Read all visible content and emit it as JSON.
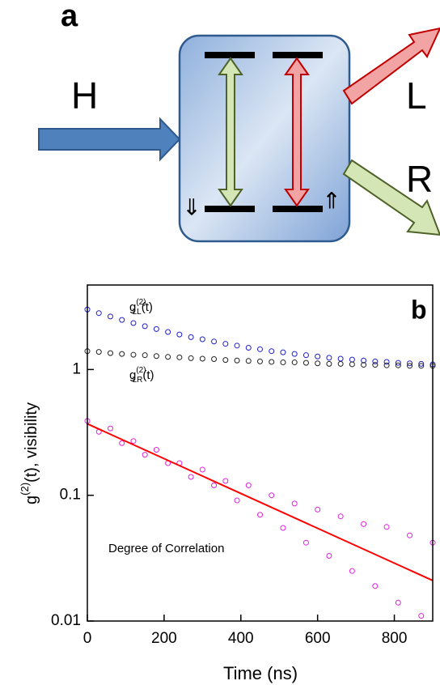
{
  "diagram": {
    "panel_label": "a",
    "input": "H",
    "outputs": [
      "L",
      "R"
    ],
    "spin_down": "⇓",
    "spin_up": "⇑"
  },
  "chart_data": {
    "type": "scatter",
    "panel_label": "b",
    "xlabel": "Time (ns)",
    "ylabel": {
      "base": "g",
      "sup": "(2)",
      "rest": "(t), visibility"
    },
    "log_y": true,
    "xlim": [
      0,
      900
    ],
    "xticks": [
      0,
      200,
      400,
      600,
      800
    ],
    "ylim": [
      0.01,
      4.7
    ],
    "yticks": [
      0.01,
      0.1,
      1
    ],
    "annotations": [
      {
        "base": "g",
        "sup": "(2)",
        "sub": "LL",
        "rest": "(t)"
      },
      {
        "base": "g",
        "sup": "(2)",
        "sub": "LR",
        "rest": "(t)"
      },
      {
        "text": "Degree of Correlation"
      }
    ],
    "series": [
      {
        "color": "#1f1fd0",
        "marker": "circle",
        "x": [
          0,
          30,
          60,
          90,
          120,
          150,
          180,
          210,
          240,
          270,
          300,
          330,
          360,
          390,
          420,
          450,
          480,
          510,
          540,
          570,
          600,
          630,
          660,
          690,
          720,
          750,
          780,
          810,
          840,
          870,
          900
        ],
        "values": [
          3.0,
          2.81,
          2.64,
          2.48,
          2.34,
          2.21,
          2.1,
          1.99,
          1.9,
          1.81,
          1.74,
          1.67,
          1.6,
          1.55,
          1.49,
          1.45,
          1.4,
          1.37,
          1.33,
          1.3,
          1.27,
          1.24,
          1.22,
          1.2,
          1.18,
          1.16,
          1.15,
          1.13,
          1.12,
          1.11,
          1.1
        ]
      },
      {
        "color": "#222222",
        "marker": "circle",
        "x": [
          0,
          30,
          60,
          90,
          120,
          150,
          180,
          210,
          240,
          270,
          300,
          330,
          360,
          390,
          420,
          450,
          480,
          510,
          540,
          570,
          600,
          630,
          660,
          690,
          720,
          750,
          780,
          810,
          840,
          870,
          900
        ],
        "values": [
          1.4,
          1.38,
          1.35,
          1.33,
          1.31,
          1.3,
          1.28,
          1.26,
          1.25,
          1.23,
          1.22,
          1.21,
          1.19,
          1.18,
          1.17,
          1.16,
          1.15,
          1.14,
          1.14,
          1.13,
          1.12,
          1.11,
          1.11,
          1.1,
          1.09,
          1.09,
          1.08,
          1.08,
          1.07,
          1.07,
          1.07
        ]
      },
      {
        "color": "#e020e0",
        "marker": "circle",
        "x": [
          0,
          30,
          60,
          90,
          120,
          150,
          180,
          210,
          240,
          270,
          300,
          330,
          360,
          390,
          420,
          450,
          480,
          510,
          540,
          570,
          600,
          630,
          660,
          690,
          720,
          750,
          780,
          810,
          840,
          870,
          900
        ],
        "values": [
          0.39,
          0.32,
          0.34,
          0.26,
          0.27,
          0.21,
          0.23,
          0.18,
          0.18,
          0.14,
          0.16,
          0.12,
          0.13,
          0.091,
          0.12,
          0.07,
          0.1,
          0.055,
          0.086,
          0.042,
          0.077,
          0.033,
          0.068,
          0.025,
          0.059,
          0.019,
          0.056,
          0.014,
          0.048,
          0.011,
          0.042
        ]
      },
      {
        "color": "#ff0000",
        "marker": "line",
        "x": [
          0,
          900
        ],
        "values": [
          0.37,
          0.021
        ]
      }
    ]
  }
}
